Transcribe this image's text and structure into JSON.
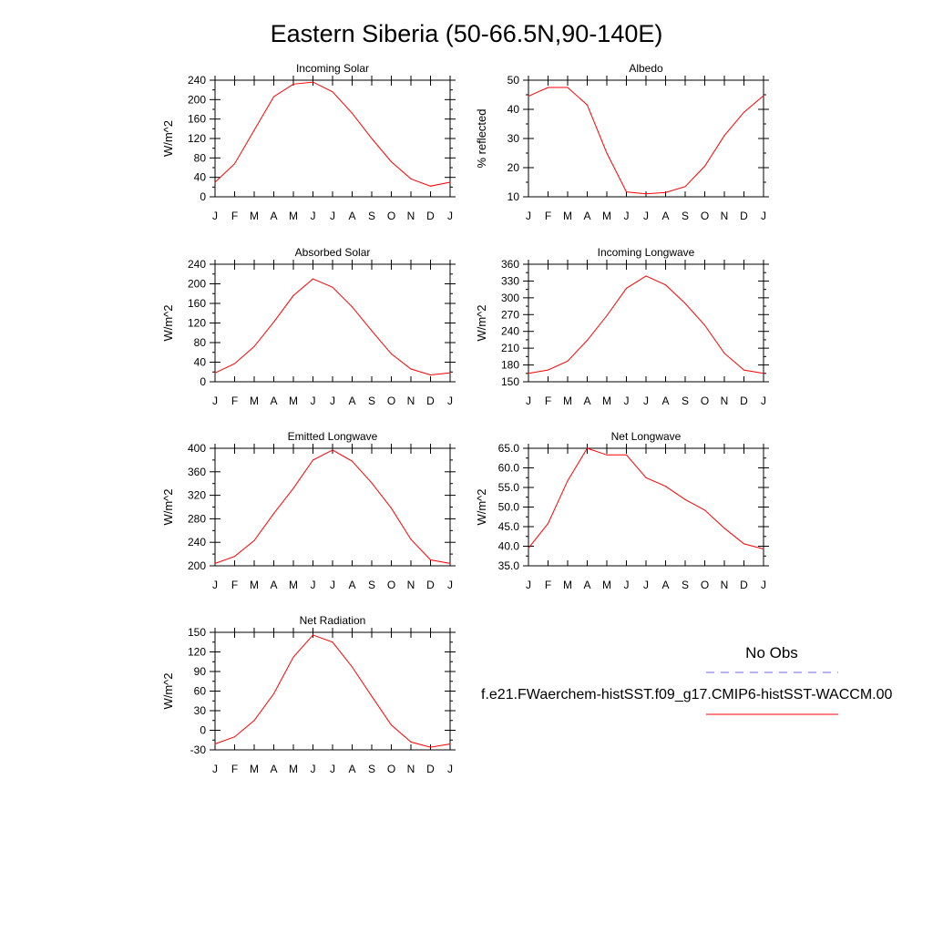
{
  "figure": {
    "title": "Eastern Siberia (50-66.5N,90-140E)",
    "model_color": "#ff0000",
    "obs_color": "#6666ff"
  },
  "legend": {
    "obs_label": "No Obs",
    "model_label": "f.e21.FWaerchem-histSST.f09_g17.CMIP6-histSST-WACCM.00"
  },
  "chart_data": [
    {
      "type": "line",
      "title": "Incoming Solar",
      "ylabel": "W/m^2",
      "categories": [
        "J",
        "F",
        "M",
        "A",
        "M",
        "J",
        "J",
        "A",
        "S",
        "O",
        "N",
        "D",
        "J"
      ],
      "ylim": [
        0,
        240
      ],
      "yticks": [
        "0",
        "40",
        "80",
        "120",
        "160",
        "200",
        "240"
      ],
      "series": [
        {
          "values": [
            30,
            68,
            137,
            206,
            232,
            236,
            216,
            172,
            120,
            72,
            37,
            22,
            30
          ]
        }
      ]
    },
    {
      "type": "line",
      "title": "Albedo",
      "ylabel": "% reflected",
      "categories": [
        "J",
        "F",
        "M",
        "A",
        "M",
        "J",
        "J",
        "A",
        "S",
        "O",
        "N",
        "D",
        "J"
      ],
      "ylim": [
        10,
        50
      ],
      "yticks": [
        "10",
        "20",
        "30",
        "40",
        "50"
      ],
      "series": [
        {
          "values": [
            44.5,
            47.5,
            47.5,
            41.5,
            25,
            11.7,
            11,
            11.5,
            13.5,
            20.5,
            31,
            39,
            44.7
          ]
        }
      ]
    },
    {
      "type": "line",
      "title": "Absorbed Solar",
      "ylabel": "W/m^2",
      "categories": [
        "J",
        "F",
        "M",
        "A",
        "M",
        "J",
        "J",
        "A",
        "S",
        "O",
        "N",
        "D",
        "J"
      ],
      "ylim": [
        0,
        240
      ],
      "yticks": [
        "0",
        "40",
        "80",
        "120",
        "160",
        "200",
        "240"
      ],
      "series": [
        {
          "values": [
            18,
            37,
            72,
            122,
            176,
            210,
            193,
            153,
            104,
            57,
            26,
            14,
            18
          ]
        }
      ]
    },
    {
      "type": "line",
      "title": "Incoming Longwave",
      "ylabel": "W/m^2",
      "categories": [
        "J",
        "F",
        "M",
        "A",
        "M",
        "J",
        "J",
        "A",
        "S",
        "O",
        "N",
        "D",
        "J"
      ],
      "ylim": [
        150,
        360
      ],
      "yticks": [
        "150",
        "180",
        "210",
        "240",
        "270",
        "300",
        "330",
        "360"
      ],
      "series": [
        {
          "values": [
            165,
            171,
            187,
            224,
            268,
            317,
            339,
            323,
            290,
            251,
            201,
            171,
            165
          ]
        }
      ]
    },
    {
      "type": "line",
      "title": "Emitted Longwave",
      "ylabel": "W/m^2",
      "categories": [
        "J",
        "F",
        "M",
        "A",
        "M",
        "J",
        "J",
        "A",
        "S",
        "O",
        "N",
        "D",
        "J"
      ],
      "ylim": [
        200,
        400
      ],
      "yticks": [
        "200",
        "240",
        "280",
        "320",
        "360",
        "400"
      ],
      "series": [
        {
          "values": [
            204,
            216,
            243,
            289,
            332,
            380,
            397,
            378,
            341,
            298,
            245,
            210,
            204
          ]
        }
      ]
    },
    {
      "type": "line",
      "title": "Net Longwave",
      "ylabel": "W/m^2",
      "categories": [
        "J",
        "F",
        "M",
        "A",
        "M",
        "J",
        "J",
        "A",
        "S",
        "O",
        "N",
        "D",
        "J"
      ],
      "ylim": [
        35,
        65
      ],
      "yticks": [
        "35.0",
        "40.0",
        "45.0",
        "50.0",
        "55.0",
        "60.0",
        "65.0"
      ],
      "series": [
        {
          "values": [
            39.5,
            45.8,
            56.7,
            65.0,
            63.3,
            63.3,
            57.5,
            55.3,
            51.9,
            49.2,
            44.6,
            40.6,
            39.3
          ]
        }
      ]
    },
    {
      "type": "line",
      "title": "Net Radiation",
      "ylabel": "W/m^2",
      "categories": [
        "J",
        "F",
        "M",
        "A",
        "M",
        "J",
        "J",
        "A",
        "S",
        "O",
        "N",
        "D",
        "J"
      ],
      "ylim": [
        -30,
        150
      ],
      "yticks": [
        "-30",
        "0",
        "30",
        "60",
        "90",
        "120",
        "150"
      ],
      "series": [
        {
          "values": [
            -21,
            -10,
            15,
            56,
            112,
            146,
            135,
            97,
            52,
            8,
            -18,
            -26,
            -21
          ]
        }
      ]
    }
  ]
}
